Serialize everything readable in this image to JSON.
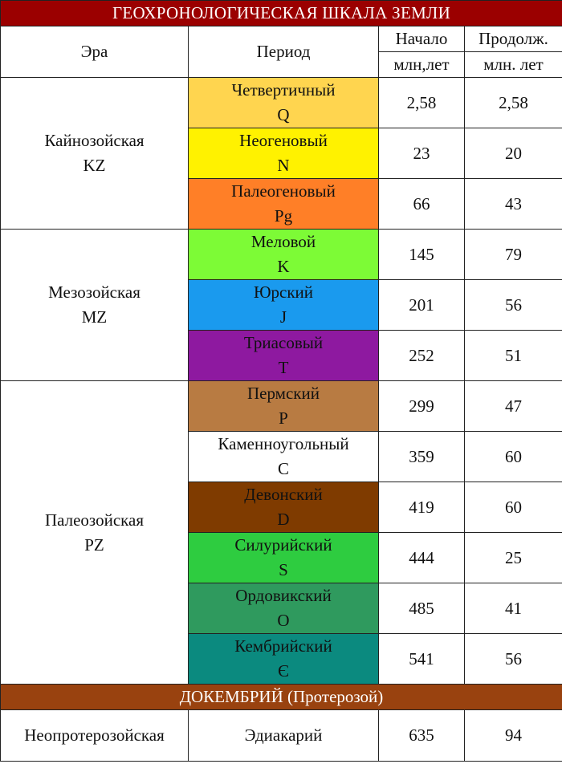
{
  "title": "ГЕОХРОНОЛОГИЧЕСКАЯ ШКАЛА ЗЕМЛИ",
  "headers": {
    "era": "Эра",
    "period": "Период",
    "start": "Начало",
    "start_unit": "млн,лет",
    "duration": "Продолж.",
    "duration_unit": "млн. лет"
  },
  "eras": [
    {
      "name": "Кайнозойская",
      "code": "KZ",
      "periods": [
        {
          "name": "Четвертичный",
          "code": "Q",
          "color": "#ffd54f",
          "start": "2,58",
          "duration": "2,58"
        },
        {
          "name": "Неогеновый",
          "code": "N",
          "color": "#fff200",
          "start": "23",
          "duration": "20"
        },
        {
          "name": "Палеогеновый",
          "code": "Pg",
          "color": "#ff7f27",
          "start": "66",
          "duration": "43"
        }
      ]
    },
    {
      "name": "Мезозойская",
      "code": "MZ",
      "periods": [
        {
          "name": "Меловой",
          "code": "K",
          "color": "#7dfb36",
          "start": "145",
          "duration": "79"
        },
        {
          "name": "Юрский",
          "code": "J",
          "color": "#1a9aee",
          "start": "201",
          "duration": "56"
        },
        {
          "name": "Триасовый",
          "code": "T",
          "color": "#8e19a0",
          "start": "252",
          "duration": "51"
        }
      ]
    },
    {
      "name": "Палеозойская",
      "code": "PZ",
      "periods": [
        {
          "name": "Пермский",
          "code": "P",
          "color": "#b87b42",
          "start": "299",
          "duration": "47"
        },
        {
          "name": "Каменноугольный",
          "code": "C",
          "color": "#ffffff",
          "start": "359",
          "duration": "60"
        },
        {
          "name": "Девонский",
          "code": "D",
          "color": "#7f3b00",
          "start": "419",
          "duration": "60"
        },
        {
          "name": "Силурийский",
          "code": "S",
          "color": "#2ecc40",
          "start": "444",
          "duration": "25"
        },
        {
          "name": "Ордовикский",
          "code": "O",
          "color": "#2f9a5e",
          "start": "485",
          "duration": "41"
        },
        {
          "name": "Кембрийский",
          "code": "Є",
          "color": "#0b8a7f",
          "start": "541",
          "duration": "56"
        }
      ]
    }
  ],
  "precambrian": {
    "title": "ДОКЕМБРИЙ (Протерозой)",
    "era": "Неопротерозойская",
    "period": "Эдиакарий",
    "start": "635",
    "duration": "94"
  }
}
